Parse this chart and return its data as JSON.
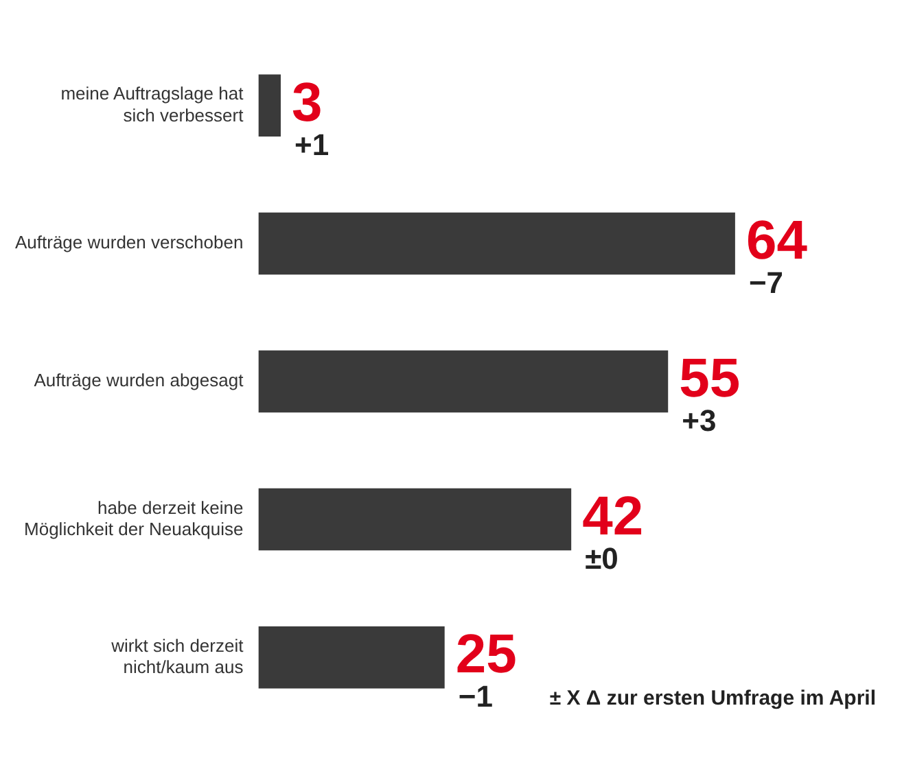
{
  "chart_data": {
    "type": "bar",
    "orientation": "horizontal",
    "categories": [
      "meine Auftragslage hat sich verbessert",
      "Aufträge wurden verschoben",
      "Aufträge wurden abgesagt",
      "habe derzeit keine Möglichkeit der Neuakquise",
      "wirkt sich derzeit nicht/kaum aus"
    ],
    "values": [
      3,
      64,
      55,
      42,
      25
    ],
    "color": "#3a3a3a",
    "data_labels": true,
    "tick_labels": "y",
    "grid": false,
    "legend": false,
    "annotations": [
      {
        "text": "+1",
        "x": 3,
        "y": "meine Auftragslage hat sich verbessert"
      },
      {
        "text": "−7",
        "x": 64,
        "y": "Aufträge wurden verschoben"
      },
      {
        "text": "+3",
        "x": 55,
        "y": "Aufträge wurden abgesagt"
      },
      {
        "text": "±0",
        "x": 42,
        "y": "habe derzeit keine Möglichkeit der Neuakquise"
      },
      {
        "text": "−1",
        "x": 25,
        "y": "wirkt sich derzeit nicht/kaum aus"
      },
      "± X Δ zur ersten Umfrage im April"
    ]
  }
}
